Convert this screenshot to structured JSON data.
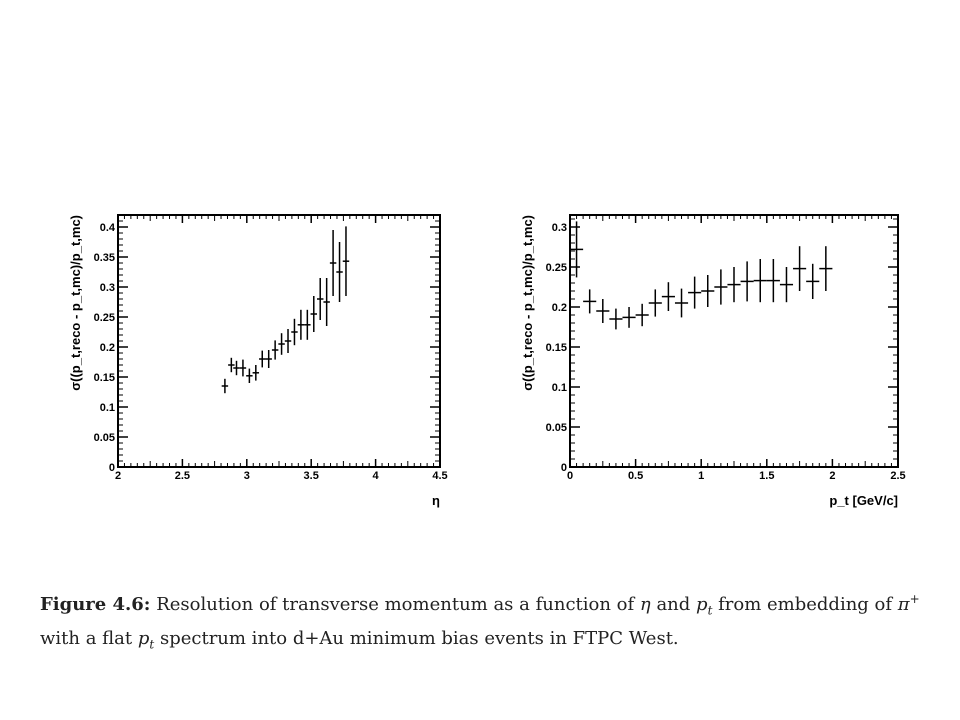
{
  "chart_data": [
    {
      "type": "scatter",
      "xlabel": "η",
      "ylabel": "σ((p_t,reco - p_t,mc)/p_t,mc)",
      "xlim": [
        2,
        4.5
      ],
      "ylim": [
        0,
        0.42
      ],
      "xticks": [
        "2",
        "2.5",
        "3",
        "3.5",
        "4",
        "4.5"
      ],
      "yticks": [
        "0",
        "0.05",
        "0.1",
        "0.15",
        "0.2",
        "0.25",
        "0.3",
        "0.35",
        "0.4"
      ],
      "grid": false,
      "x": [
        2.83,
        2.88,
        2.92,
        2.97,
        3.02,
        3.07,
        3.12,
        3.17,
        3.22,
        3.27,
        3.32,
        3.37,
        3.42,
        3.47,
        3.52,
        3.57,
        3.62,
        3.67,
        3.72,
        3.77
      ],
      "y": [
        0.135,
        0.17,
        0.165,
        0.165,
        0.152,
        0.157,
        0.18,
        0.18,
        0.195,
        0.205,
        0.21,
        0.225,
        0.237,
        0.237,
        0.255,
        0.28,
        0.275,
        0.34,
        0.325,
        0.343
      ],
      "yerr": [
        0.012,
        0.012,
        0.012,
        0.014,
        0.012,
        0.013,
        0.014,
        0.015,
        0.016,
        0.018,
        0.02,
        0.022,
        0.025,
        0.025,
        0.03,
        0.035,
        0.04,
        0.055,
        0.05,
        0.058
      ],
      "xerr": 0.025
    },
    {
      "type": "scatter",
      "xlabel": "p_t [GeV/c]",
      "ylabel": "σ((p_t,reco - p_t,mc)/p_t,mc)",
      "xlim": [
        0,
        2.5
      ],
      "ylim": [
        0,
        0.315
      ],
      "xticks": [
        "0",
        "0.5",
        "1",
        "1.5",
        "2",
        "2.5"
      ],
      "yticks": [
        "0",
        "0.05",
        "0.1",
        "0.15",
        "0.2",
        "0.25",
        "0.3"
      ],
      "grid": false,
      "x": [
        0.05,
        0.15,
        0.25,
        0.35,
        0.45,
        0.55,
        0.65,
        0.75,
        0.85,
        0.95,
        1.05,
        1.15,
        1.25,
        1.35,
        1.45,
        1.55,
        1.65,
        1.75,
        1.85,
        1.95
      ],
      "y": [
        0.272,
        0.207,
        0.195,
        0.185,
        0.187,
        0.19,
        0.205,
        0.213,
        0.205,
        0.218,
        0.22,
        0.225,
        0.228,
        0.232,
        0.233,
        0.233,
        0.228,
        0.248,
        0.232,
        0.248
      ],
      "yerr": [
        0.035,
        0.015,
        0.015,
        0.013,
        0.013,
        0.014,
        0.017,
        0.018,
        0.018,
        0.02,
        0.02,
        0.022,
        0.022,
        0.025,
        0.027,
        0.027,
        0.022,
        0.028,
        0.022,
        0.028
      ],
      "xerr": 0.05
    }
  ],
  "caption": {
    "label": "Figure 4.6:",
    "line1_pre": "Resolution of transverse momentum as a function of",
    "eta": "η",
    "and": "and",
    "pt": "p",
    "pt_sub": "t",
    "line1_post": "from embedding of",
    "pi": "π",
    "pi_sup": "+",
    "line2_pre": "with a flat",
    "line2_post": "spectrum into d+Au minimum bias events in FTPC West."
  }
}
